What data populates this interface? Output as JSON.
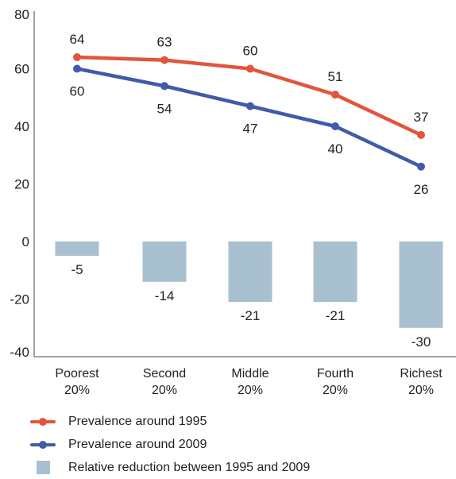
{
  "chart_data": {
    "type": "line",
    "categories": [
      [
        "Poorest",
        "20%"
      ],
      [
        "Second",
        "20%"
      ],
      [
        "Middle",
        "20%"
      ],
      [
        "Fourth",
        "20%"
      ],
      [
        "Richest",
        "20%"
      ]
    ],
    "series": [
      {
        "name": "Prevalence around 1995",
        "kind": "line",
        "values": [
          64,
          63,
          60,
          51,
          37
        ],
        "color": "#e2553c"
      },
      {
        "name": "Prevalence around 2009",
        "kind": "line",
        "values": [
          60,
          54,
          47,
          40,
          26
        ],
        "color": "#3f5ba9"
      },
      {
        "name": "Relative reduction between 1995 and 2009",
        "kind": "bar",
        "values": [
          -5,
          -14,
          -21,
          -21,
          -30
        ],
        "color": "#a8c0cf"
      }
    ],
    "ylim": [
      -40,
      80
    ],
    "yticks": [
      -40,
      -20,
      0,
      20,
      40,
      60,
      80
    ],
    "grid": false,
    "legend_position": "bottom-left"
  }
}
